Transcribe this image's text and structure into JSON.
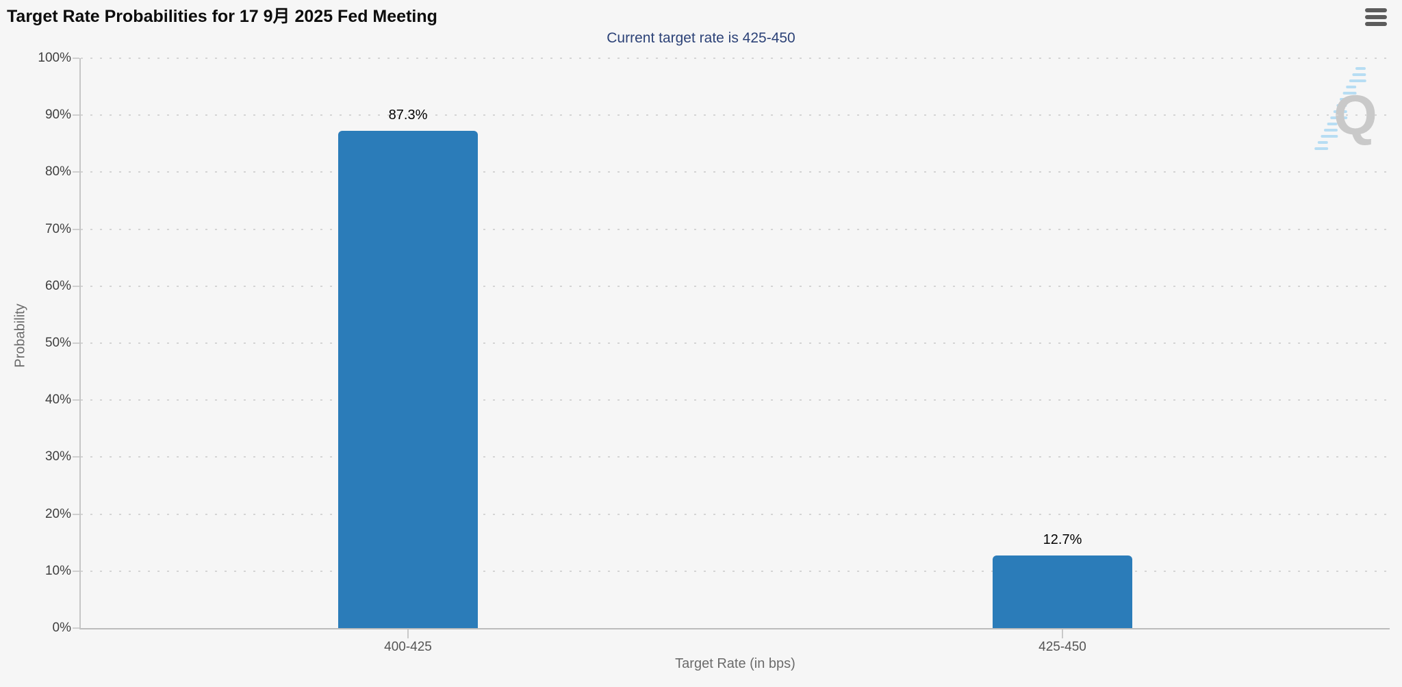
{
  "header": {
    "title": "Target Rate Probabilities for 17 9月 2025 Fed Meeting",
    "subtitle": "Current target rate is 425-450"
  },
  "menu": {
    "icon": "hamburger-icon"
  },
  "watermark": {
    "letter": "Q"
  },
  "chart_data": {
    "type": "bar",
    "title": "Target Rate Probabilities for 17 9月 2025 Fed Meeting",
    "subtitle": "Current target rate is 425-450",
    "categories": [
      "400-425",
      "425-450"
    ],
    "values": [
      87.3,
      12.7
    ],
    "value_labels": [
      "87.3%",
      "12.7%"
    ],
    "xlabel": "Target Rate (in bps)",
    "ylabel": "Probability",
    "ylim": [
      0,
      100
    ],
    "ytick_step": 10,
    "ytick_labels": [
      "0%",
      "10%",
      "20%",
      "30%",
      "40%",
      "50%",
      "60%",
      "70%",
      "80%",
      "90%",
      "100%"
    ],
    "grid": "dotted-horizontal",
    "legend_position": "none",
    "bar_color": "#2b7cb9",
    "colors": {
      "background": "#f6f6f6",
      "subtitle": "#2c4277",
      "grid_dot": "#d4d4d4",
      "axis_line": "#bcbcbc",
      "tick_label": "#555555",
      "axis_title": "#6b6b6b",
      "watermark_gray": "#c9c9c9",
      "watermark_blue": "#b7ddf3"
    }
  }
}
